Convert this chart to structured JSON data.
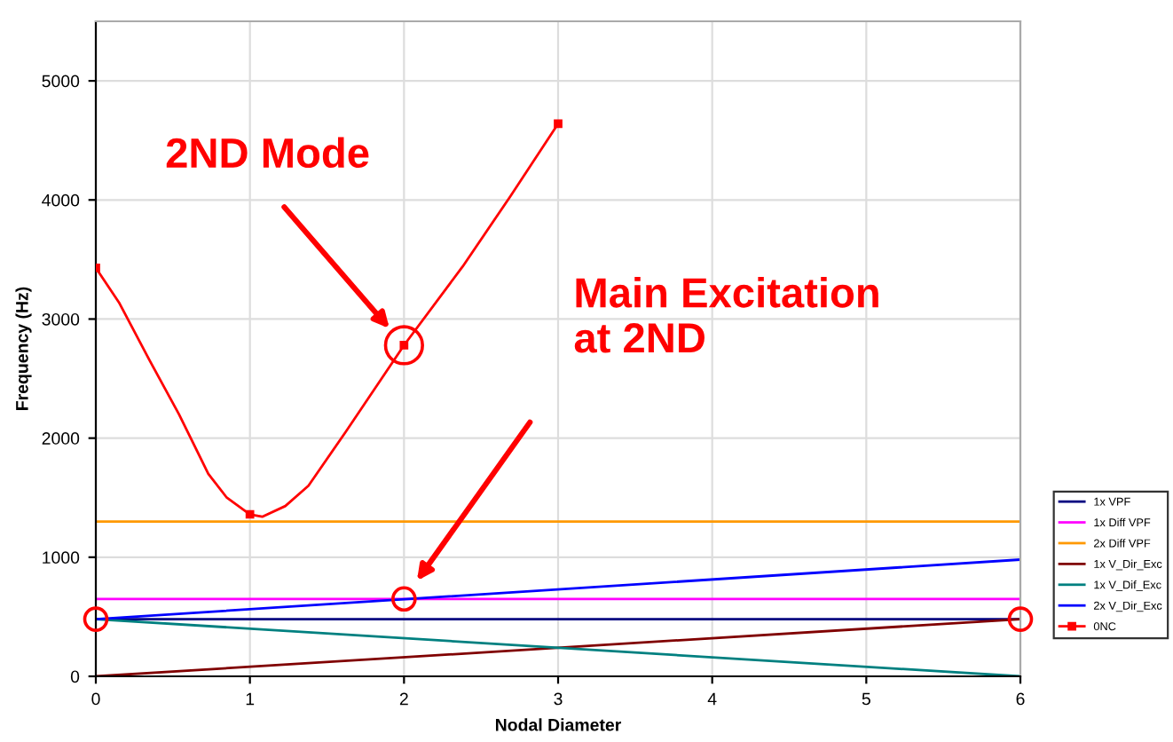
{
  "chart_data": {
    "type": "line",
    "xlabel": "Nodal Diameter",
    "ylabel": "Frequency (Hz)",
    "xlim": [
      0,
      6
    ],
    "xticks": [
      0,
      1,
      2,
      3,
      4,
      5,
      6
    ],
    "ylim": [
      0,
      5500
    ],
    "yticks": [
      0,
      1000,
      2000,
      3000,
      4000,
      5000
    ],
    "grid": true,
    "legend": "right",
    "marker": "none",
    "line_style": "solid",
    "series": [
      {
        "name": "1x VPF",
        "color": "#000080",
        "x": [
          0,
          6
        ],
        "values": [
          480,
          480
        ]
      },
      {
        "name": "1x Diff VPF",
        "color": "#ff00ff",
        "x": [
          0,
          6
        ],
        "values": [
          650,
          650
        ]
      },
      {
        "name": "2x Diff VPF",
        "color": "#ff9900",
        "x": [
          0,
          6
        ],
        "values": [
          1300,
          1300
        ]
      },
      {
        "name": "1x V_Dir_Exc",
        "color": "#800000",
        "x": [
          0,
          6
        ],
        "values": [
          0,
          480
        ]
      },
      {
        "name": "1x V_Dif_Exc",
        "color": "#008080",
        "x": [
          0,
          6
        ],
        "values": [
          480,
          0
        ]
      },
      {
        "name": "2x V_Dir_Exc",
        "color": "#0000ff",
        "x": [
          0,
          6
        ],
        "values": [
          480,
          980
        ]
      },
      {
        "color": "#ff0000",
        "x": [
          0,
          0.15,
          0.35,
          0.54,
          0.73,
          0.85,
          1,
          1.08,
          1.23,
          1.38,
          1.62,
          2,
          2.38,
          2.69,
          3
        ],
        "values": [
          3430,
          3140,
          2650,
          2200,
          1700,
          1500,
          1360,
          1340,
          1430,
          1600,
          2050,
          2780,
          3440,
          4030,
          4640
        ]
      },
      {
        "type": "scatter",
        "name": "0NC",
        "color": "#ff0000",
        "x": [
          0,
          1,
          2,
          3
        ],
        "values": [
          3430,
          1360,
          2780,
          4640
        ],
        "marker": "square"
      },
      {
        "type": "scatter",
        "color": "#ff0000",
        "marker": "circle",
        "x": [
          0,
          2,
          6
        ],
        "values": [
          480,
          650,
          480
        ]
      },
      {
        "type": "scatter",
        "color": "#ff0000",
        "marker": "circle",
        "x": [
          2
        ],
        "values": [
          2780
        ]
      }
    ],
    "annotations": [
      "2ND Mode",
      "Main Excitation\nat 2ND"
    ]
  }
}
